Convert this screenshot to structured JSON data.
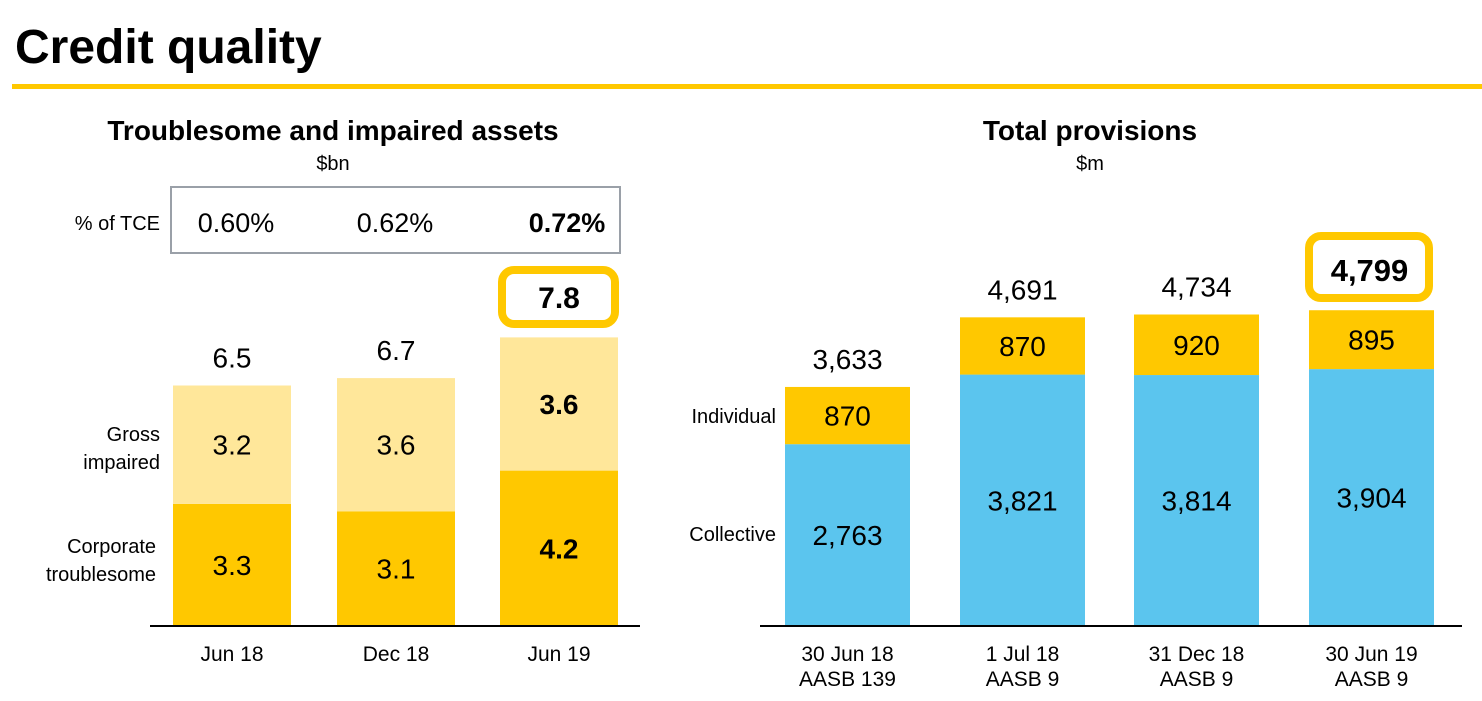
{
  "page_title": "Credit quality",
  "colors": {
    "accent": "#FFC800",
    "light_yellow": "#FFE79A",
    "blue": "#5BC5EE",
    "axis": "#000000",
    "box_border": "#9AA0A8"
  },
  "chart_data": [
    {
      "type": "bar",
      "stacked": true,
      "title": "Troublesome and impaired assets",
      "subtitle": "$bn",
      "categories": [
        "Jun 18",
        "Dec 18",
        "Jun 19"
      ],
      "series": [
        {
          "name": "Corporate troublesome",
          "values": [
            3.3,
            3.1,
            4.2
          ],
          "labels": [
            "3.3",
            "3.1",
            "4.2"
          ],
          "color": "#FFC800"
        },
        {
          "name": "Gross impaired",
          "values": [
            3.2,
            3.6,
            3.6
          ],
          "labels": [
            "3.2",
            "3.6",
            "3.6"
          ],
          "color": "#FFE79A"
        }
      ],
      "totals": [
        "6.5",
        "6.7",
        "7.8"
      ],
      "highlight": [
        false,
        false,
        true
      ],
      "tce": {
        "label": "% of TCE",
        "values": [
          "0.60%",
          "0.62%",
          "0.72%"
        ]
      }
    },
    {
      "type": "bar",
      "stacked": true,
      "title": "Total provisions",
      "subtitle": "$m",
      "categories": [
        [
          "30 Jun 18",
          "AASB 139"
        ],
        [
          "1 Jul 18",
          "AASB 9"
        ],
        [
          "31 Dec 18",
          "AASB 9"
        ],
        [
          "30 Jun 19",
          "AASB 9"
        ]
      ],
      "series": [
        {
          "name": "Collective",
          "values": [
            2763,
            3821,
            3814,
            3904
          ],
          "labels": [
            "2,763",
            "3,821",
            "3,814",
            "3,904"
          ],
          "color": "#5BC5EE"
        },
        {
          "name": "Individual",
          "values": [
            870,
            870,
            920,
            895
          ],
          "labels": [
            "870",
            "870",
            "920",
            "895"
          ],
          "color": "#FFC800"
        }
      ],
      "totals": [
        "3,633",
        "4,691",
        "4,734",
        "4,799"
      ],
      "highlight": [
        false,
        false,
        false,
        true
      ]
    }
  ]
}
